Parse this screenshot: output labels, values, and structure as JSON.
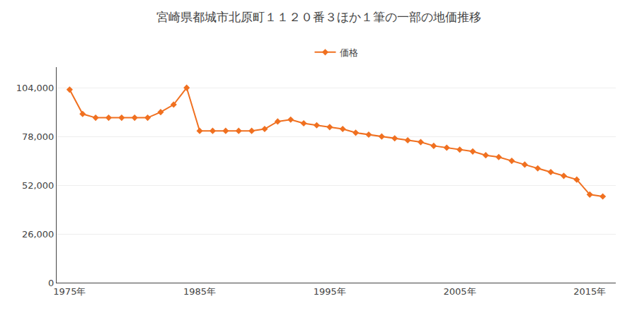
{
  "chart_data": {
    "type": "line",
    "title": "宮崎県都城市北原町１１２０番３ほか１筆の一部の地価推移",
    "x": [
      1975,
      1976,
      1977,
      1978,
      1979,
      1980,
      1981,
      1982,
      1983,
      1984,
      1985,
      1986,
      1987,
      1988,
      1989,
      1990,
      1991,
      1992,
      1993,
      1994,
      1995,
      1996,
      1997,
      1998,
      1999,
      2000,
      2001,
      2002,
      2003,
      2004,
      2005,
      2006,
      2007,
      2008,
      2009,
      2010,
      2011,
      2012,
      2013,
      2014,
      2015,
      2016
    ],
    "series": [
      {
        "name": "価格",
        "color": "#f07020",
        "marker": "diamond",
        "values": [
          103000,
          90000,
          88000,
          88000,
          88000,
          88000,
          88000,
          91000,
          95000,
          104000,
          81000,
          81000,
          81000,
          81000,
          81000,
          82000,
          86000,
          87000,
          85000,
          84000,
          83000,
          82000,
          80000,
          79000,
          78000,
          77000,
          76000,
          75000,
          73000,
          72000,
          71000,
          70000,
          68000,
          67000,
          65000,
          63000,
          61000,
          59000,
          57000,
          55000,
          47000,
          46000
        ]
      }
    ],
    "xlim": [
      1974,
      2017
    ],
    "xticks": [
      {
        "value": 1975,
        "label": "1975年"
      },
      {
        "value": 1985,
        "label": "1985年"
      },
      {
        "value": 1995,
        "label": "1995年"
      },
      {
        "value": 2005,
        "label": "2005年"
      },
      {
        "value": 2015,
        "label": "2015年"
      }
    ],
    "ylim": [
      0,
      115000
    ],
    "yticks": [
      0,
      {
        "value": 26000,
        "label": "26,000"
      },
      {
        "value": 52000,
        "label": "52,000"
      },
      {
        "value": 78000,
        "label": "78,000"
      },
      {
        "value": 104000,
        "label": "104,000"
      }
    ],
    "grid": "y",
    "legend": "top"
  }
}
